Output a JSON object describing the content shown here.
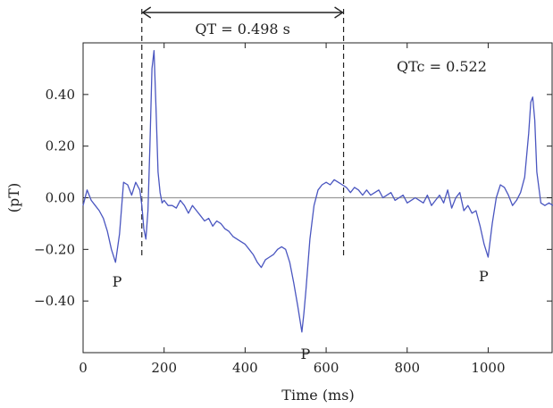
{
  "chart_data": {
    "type": "line",
    "title": "",
    "xlabel": "Time (ms)",
    "ylabel": "(pT)",
    "xlim": [
      0,
      1160
    ],
    "ylim": [
      -0.6,
      0.6
    ],
    "x_ticks": [
      0,
      200,
      400,
      600,
      800,
      1000
    ],
    "x_tick_labels": [
      "0",
      "200",
      "400",
      "600",
      "800",
      "1000"
    ],
    "y_ticks": [
      0.4,
      0.2,
      0.0,
      -0.2,
      -0.4
    ],
    "y_tick_labels": [
      "0.40",
      "0.20",
      "0.00",
      "−0.20",
      "−0.40"
    ],
    "zero_line": true,
    "grid": false,
    "colors": {
      "trace": "#4a56c0",
      "zero_line": "#9a9a9a",
      "axes": "#222222"
    },
    "series": [
      {
        "x": [
          0,
          10,
          20,
          30,
          40,
          50,
          60,
          70,
          80,
          90,
          100,
          110,
          120,
          130,
          140,
          145,
          150,
          155,
          160,
          165,
          170,
          175,
          180,
          185,
          190,
          195,
          200,
          210,
          220,
          230,
          240,
          250,
          260,
          270,
          280,
          290,
          300,
          310,
          320,
          330,
          340,
          350,
          360,
          370,
          380,
          390,
          400,
          410,
          420,
          430,
          440,
          450,
          460,
          470,
          480,
          490,
          500,
          510,
          520,
          530,
          540,
          545,
          550,
          560,
          570,
          580,
          590,
          600,
          610,
          620,
          630,
          640,
          650,
          660,
          670,
          680,
          690,
          700,
          710,
          720,
          730,
          740,
          750,
          760,
          770,
          780,
          790,
          800,
          810,
          820,
          830,
          840,
          850,
          860,
          870,
          880,
          890,
          900,
          910,
          920,
          930,
          940,
          950,
          960,
          970,
          980,
          990,
          1000,
          1010,
          1020,
          1030,
          1040,
          1050,
          1060,
          1070,
          1080,
          1090,
          1100,
          1105,
          1110,
          1115,
          1120,
          1130,
          1140,
          1150,
          1160
        ],
        "y": [
          -0.03,
          0.03,
          -0.01,
          -0.03,
          -0.05,
          -0.08,
          -0.13,
          -0.2,
          -0.25,
          -0.14,
          0.06,
          0.05,
          0.01,
          0.06,
          0.03,
          -0.03,
          -0.12,
          -0.16,
          -0.05,
          0.2,
          0.5,
          0.57,
          0.35,
          0.1,
          0.02,
          -0.02,
          -0.01,
          -0.03,
          -0.03,
          -0.04,
          -0.01,
          -0.03,
          -0.06,
          -0.03,
          -0.05,
          -0.07,
          -0.09,
          -0.08,
          -0.11,
          -0.09,
          -0.1,
          -0.12,
          -0.13,
          -0.15,
          -0.16,
          -0.17,
          -0.18,
          -0.2,
          -0.22,
          -0.25,
          -0.27,
          -0.24,
          -0.23,
          -0.22,
          -0.2,
          -0.19,
          -0.2,
          -0.25,
          -0.33,
          -0.42,
          -0.52,
          -0.45,
          -0.36,
          -0.16,
          -0.03,
          0.03,
          0.05,
          0.06,
          0.05,
          0.07,
          0.06,
          0.05,
          0.04,
          0.02,
          0.04,
          0.03,
          0.01,
          0.03,
          0.01,
          0.02,
          0.03,
          0.0,
          0.01,
          0.02,
          -0.01,
          0.0,
          0.01,
          -0.02,
          -0.01,
          0.0,
          -0.01,
          -0.02,
          0.01,
          -0.03,
          -0.01,
          0.01,
          -0.02,
          0.03,
          -0.04,
          0.0,
          0.02,
          -0.05,
          -0.03,
          -0.06,
          -0.05,
          -0.11,
          -0.18,
          -0.23,
          -0.1,
          0.0,
          0.05,
          0.04,
          0.01,
          -0.03,
          -0.01,
          0.02,
          0.08,
          0.25,
          0.37,
          0.39,
          0.3,
          0.1,
          -0.02,
          -0.03,
          -0.02,
          -0.03
        ]
      }
    ],
    "annotations": {
      "qt_label": "QT = 0.498 s",
      "qt_start_ms": 145,
      "qt_end_ms": 643,
      "qtc_label": "QTc = 0.522",
      "p_label": "P",
      "p_waves": [
        {
          "x": 75,
          "y": -0.25
        },
        {
          "x": 540,
          "y": -0.53
        },
        {
          "x": 980,
          "y": -0.23
        }
      ]
    }
  }
}
